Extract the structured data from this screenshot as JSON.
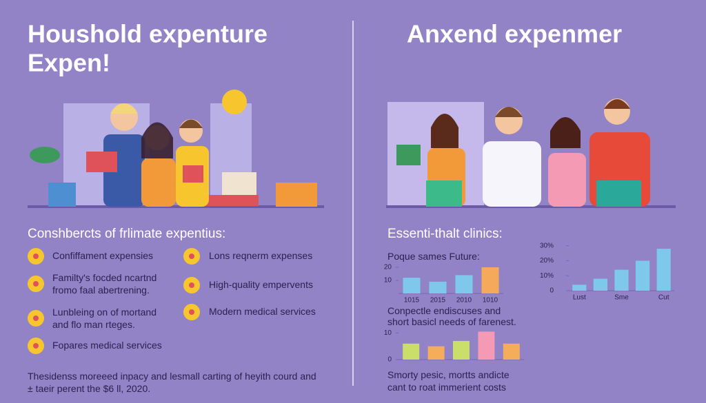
{
  "page": {
    "left_title": [
      "Houshold expenture",
      "Expen!"
    ],
    "right_title": "Anxend expenmer",
    "left_heading": "Conshbercts of frlimate expentius:",
    "left_items": [
      "Confiffament expensies",
      "Familty's focded ncartnd fromo faal abertrening.",
      "Lunbleing on of mortand and flo man rteges.",
      "Fopares medical services"
    ],
    "right_items": [
      "Lons reqnerm expenses",
      "High-quality empervents",
      "Modern medical services"
    ],
    "footer": "Thesidenss moreeed inpacy and lesmall carting of heyith courd and ± taeir perent the $6 ll, 2020.",
    "right_heading": "Essenti-thalt clinics:",
    "caption": "Smorty pesic, mortts andicte cant to roat immerient costs"
  },
  "chart_data": [
    {
      "type": "bar",
      "title": "Poque sames Future:",
      "categories": [
        "1015",
        "2015",
        "2010",
        "1010"
      ],
      "values": [
        12,
        9,
        14,
        20
      ],
      "colors": [
        "#7ec8ec",
        "#7ec8ec",
        "#7ec8ec",
        "#f5a95a"
      ],
      "ylim": [
        0,
        20
      ],
      "yticks": [
        10,
        20
      ]
    },
    {
      "type": "bar",
      "categories": [
        "Lust",
        null,
        "Sme",
        null,
        "Cut"
      ],
      "values": [
        4,
        8,
        14,
        20,
        28
      ],
      "colors": [
        "#7ec8ec",
        "#7ec8ec",
        "#7ec8ec",
        "#7ec8ec",
        "#7ec8ec"
      ],
      "ylim": [
        0,
        40
      ],
      "yticks": [
        0,
        {
          "value": 10,
          "label": "10%"
        },
        {
          "value": 20,
          "label": "20%"
        },
        {
          "value": 30,
          "label": "30%"
        }
      ]
    },
    {
      "type": "bar",
      "title": "Conpectle endiscuses and short basicl needs of farenest.",
      "categories": [
        null,
        null,
        null,
        null,
        null
      ],
      "values": [
        6,
        5,
        7,
        10.5,
        6
      ],
      "colors": [
        "#c9df6a",
        "#f5ad5c",
        "#c9df6a",
        "#f59ab4",
        "#f5ad5c"
      ],
      "ylim": [
        0,
        15
      ],
      "yticks": [
        0,
        10
      ]
    }
  ]
}
